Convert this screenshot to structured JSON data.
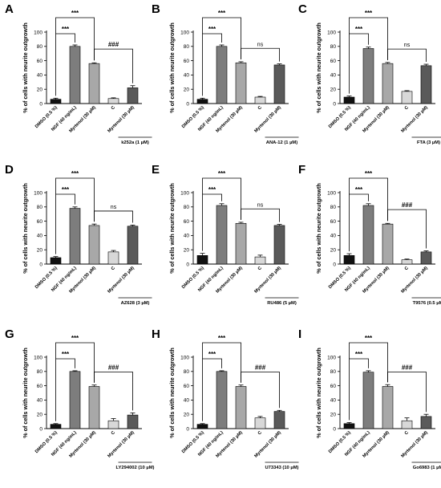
{
  "chart_data": [
    {
      "type": "bar",
      "panel": "A",
      "ylabel": "% of cells with neurite outgrowth",
      "ylim": [
        0,
        100
      ],
      "yticks": [
        "0",
        "20",
        "40",
        "60",
        "80",
        "100"
      ],
      "categories": [
        "DMSO (0.5 %)",
        "NGF (40 ng/mL)",
        "Myrtenol (30 µM)",
        "C",
        "Myrtenol (30 µM)"
      ],
      "values": [
        6,
        80,
        56,
        7,
        22
      ],
      "errors": [
        1.5,
        2,
        1,
        1,
        3
      ],
      "bar_colors": [
        "#111111",
        "#7d7d7d",
        "#a8a8a8",
        "#d8d8d8",
        "#5a5a5a"
      ],
      "treatment": "k252a (1 µM)",
      "comparisons": [
        {
          "from": 0,
          "to": 1,
          "label": "***"
        },
        {
          "from": 0,
          "to": 2,
          "label": "***"
        },
        {
          "from": 2,
          "to": 4,
          "label": "###"
        }
      ]
    },
    {
      "type": "bar",
      "panel": "B",
      "ylabel": "% of cells with neurite outgrowth",
      "ylim": [
        0,
        100
      ],
      "yticks": [
        "0",
        "20",
        "40",
        "60",
        "80",
        "100"
      ],
      "categories": [
        "DMSO (0.5 %)",
        "NGF (40 ng/mL)",
        "Myrtenol (30 µM)",
        "C",
        "Myrtenol (30 µM)"
      ],
      "values": [
        6,
        80,
        57,
        9,
        54
      ],
      "errors": [
        1.5,
        2,
        1.5,
        1,
        1.5
      ],
      "bar_colors": [
        "#111111",
        "#7d7d7d",
        "#a8a8a8",
        "#d8d8d8",
        "#5a5a5a"
      ],
      "treatment": "ANA-12 (1 µM)",
      "comparisons": [
        {
          "from": 0,
          "to": 1,
          "label": "***"
        },
        {
          "from": 0,
          "to": 2,
          "label": "***"
        },
        {
          "from": 2,
          "to": 4,
          "label": "ns"
        }
      ]
    },
    {
      "type": "bar",
      "panel": "C",
      "ylabel": "% of cells with neurite outgrowth",
      "ylim": [
        0,
        100
      ],
      "yticks": [
        "0",
        "20",
        "40",
        "60",
        "80",
        "100"
      ],
      "categories": [
        "DMSO (0.5 %)",
        "NGF (40 ng/mL)",
        "Myrtenol (30 µM)",
        "C",
        "Myrtenol (30 µM)"
      ],
      "values": [
        9,
        77,
        56,
        17,
        53
      ],
      "errors": [
        1.5,
        2,
        1.5,
        1,
        2
      ],
      "bar_colors": [
        "#111111",
        "#7d7d7d",
        "#a8a8a8",
        "#d8d8d8",
        "#5a5a5a"
      ],
      "treatment": "FTA (3 µM)",
      "comparisons": [
        {
          "from": 0,
          "to": 1,
          "label": "***"
        },
        {
          "from": 0,
          "to": 2,
          "label": "***"
        },
        {
          "from": 2,
          "to": 4,
          "label": "ns"
        }
      ]
    },
    {
      "type": "bar",
      "panel": "D",
      "ylabel": "% of cells with neurite outgrowth",
      "ylim": [
        0,
        100
      ],
      "yticks": [
        "0",
        "20",
        "40",
        "60",
        "80",
        "100"
      ],
      "categories": [
        "DMSO (0.5 %)",
        "NGF (40 ng/mL)",
        "Myrtenol (30 µM)",
        "C",
        "Myrtenol (30 µM)"
      ],
      "values": [
        9,
        78,
        54,
        17,
        53
      ],
      "errors": [
        1.5,
        2,
        2,
        2,
        1.5
      ],
      "bar_colors": [
        "#111111",
        "#7d7d7d",
        "#a8a8a8",
        "#d8d8d8",
        "#5a5a5a"
      ],
      "treatment": "AZ628 (3 µM)",
      "comparisons": [
        {
          "from": 0,
          "to": 1,
          "label": "***"
        },
        {
          "from": 0,
          "to": 2,
          "label": "***"
        },
        {
          "from": 2,
          "to": 4,
          "label": "ns"
        }
      ]
    },
    {
      "type": "bar",
      "panel": "E",
      "ylabel": "% of cells with neurite outgrowth",
      "ylim": [
        0,
        100
      ],
      "yticks": [
        "0",
        "20",
        "40",
        "60",
        "80",
        "100"
      ],
      "categories": [
        "DMSO (0.5 %)",
        "NGF (40 ng/mL)",
        "Myrtenol (30 µM)",
        "C",
        "Myrtenol (30 µM)"
      ],
      "values": [
        12,
        82,
        57,
        10,
        54
      ],
      "errors": [
        3,
        2.5,
        1.5,
        2.5,
        1.5
      ],
      "bar_colors": [
        "#111111",
        "#7d7d7d",
        "#a8a8a8",
        "#d8d8d8",
        "#5a5a5a"
      ],
      "treatment": "RU486 (5 µM)",
      "comparisons": [
        {
          "from": 0,
          "to": 1,
          "label": "***"
        },
        {
          "from": 0,
          "to": 2,
          "label": "***"
        },
        {
          "from": 2,
          "to": 4,
          "label": "ns"
        }
      ]
    },
    {
      "type": "bar",
      "panel": "F",
      "ylabel": "% of cells with neurite outgrowth",
      "ylim": [
        0,
        100
      ],
      "yticks": [
        "0",
        "20",
        "40",
        "60",
        "80",
        "100"
      ],
      "categories": [
        "DMSO (0.5 %)",
        "NGF (40 ng/mL)",
        "Myrtenol (30 µM)",
        "C",
        "Myrtenol (30 µM)"
      ],
      "values": [
        12,
        82,
        56,
        6,
        17
      ],
      "errors": [
        2.5,
        2.5,
        1,
        1,
        1.5
      ],
      "bar_colors": [
        "#111111",
        "#7d7d7d",
        "#a8a8a8",
        "#d8d8d8",
        "#5a5a5a"
      ],
      "treatment": "T9576 (0.5 µM)",
      "comparisons": [
        {
          "from": 0,
          "to": 1,
          "label": "***"
        },
        {
          "from": 0,
          "to": 2,
          "label": "***"
        },
        {
          "from": 2,
          "to": 4,
          "label": "###"
        }
      ]
    },
    {
      "type": "bar",
      "panel": "G",
      "ylabel": "% of cells with neurite outgrowth",
      "ylim": [
        0,
        100
      ],
      "yticks": [
        "0",
        "20",
        "40",
        "60",
        "80",
        "100"
      ],
      "categories": [
        "DMSO (0.5 %)",
        "NGF (40 ng/mL)",
        "Myrtenol (30 µM)",
        "C",
        "Myrtenol (30 µM)"
      ],
      "values": [
        6,
        80,
        59,
        11,
        19
      ],
      "errors": [
        1,
        1,
        2,
        3,
        3
      ],
      "bar_colors": [
        "#111111",
        "#7d7d7d",
        "#a8a8a8",
        "#d8d8d8",
        "#5a5a5a"
      ],
      "treatment": "LY294002 (10 µM)",
      "comparisons": [
        {
          "from": 0,
          "to": 1,
          "label": "***"
        },
        {
          "from": 0,
          "to": 2,
          "label": "***"
        },
        {
          "from": 2,
          "to": 4,
          "label": "###"
        }
      ]
    },
    {
      "type": "bar",
      "panel": "H",
      "ylabel": "% of cells with neurite outgrowth",
      "ylim": [
        0,
        100
      ],
      "yticks": [
        "0",
        "20",
        "40",
        "60",
        "80",
        "100"
      ],
      "categories": [
        "DMSO (0.5 %)",
        "NGF (40 ng/mL)",
        "Myrtenol (30 µM)",
        "C",
        "Myrtenol (30 µM)"
      ],
      "values": [
        6,
        80,
        59,
        15,
        24
      ],
      "errors": [
        1,
        1,
        2,
        2,
        1.5
      ],
      "bar_colors": [
        "#111111",
        "#7d7d7d",
        "#a8a8a8",
        "#d8d8d8",
        "#5a5a5a"
      ],
      "treatment": "U73343 (10 µM)",
      "comparisons": [
        {
          "from": 0,
          "to": 1,
          "label": "***"
        },
        {
          "from": 0,
          "to": 2,
          "label": "***"
        },
        {
          "from": 2,
          "to": 4,
          "label": "###"
        }
      ]
    },
    {
      "type": "bar",
      "panel": "I",
      "ylabel": "% of cells with neurite outgrowth",
      "ylim": [
        0,
        100
      ],
      "yticks": [
        "0",
        "20",
        "40",
        "60",
        "80",
        "100"
      ],
      "categories": [
        "DMSO (0.5 %)",
        "NGF (40 ng/mL)",
        "Myrtenol (30 µM)",
        "C",
        "Myrtenol (30 µM)"
      ],
      "values": [
        7,
        79,
        59,
        11,
        17
      ],
      "errors": [
        1.5,
        2,
        2.5,
        4,
        3
      ],
      "bar_colors": [
        "#111111",
        "#7d7d7d",
        "#a8a8a8",
        "#d8d8d8",
        "#5a5a5a"
      ],
      "treatment": "Go6983 (1 µM)",
      "comparisons": [
        {
          "from": 0,
          "to": 1,
          "label": "***"
        },
        {
          "from": 0,
          "to": 2,
          "label": "***"
        },
        {
          "from": 2,
          "to": 4,
          "label": "###"
        }
      ]
    }
  ]
}
